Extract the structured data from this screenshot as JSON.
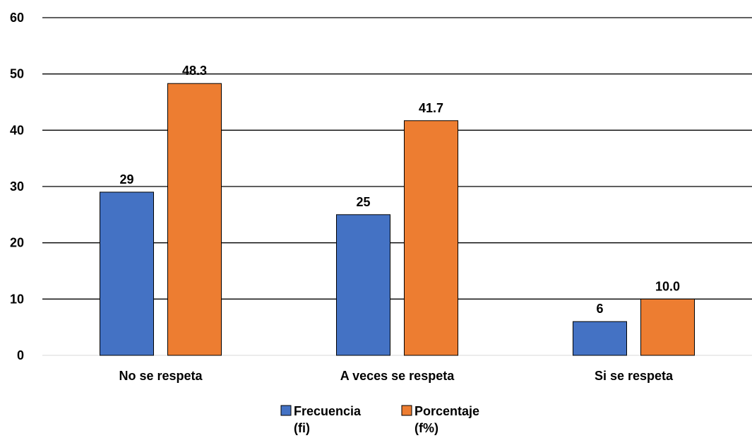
{
  "chart_data": {
    "type": "bar",
    "categories": [
      "No se respeta",
      "A veces se respeta",
      "Si se respeta"
    ],
    "series": [
      {
        "name": "Frecuencia (fi)",
        "legend_lines": [
          "Frecuencia",
          "(fi)"
        ],
        "values": [
          29,
          25,
          6
        ],
        "labels": [
          "29",
          "25",
          "6"
        ],
        "color": "#4472C4"
      },
      {
        "name": "Porcentaje (f%)",
        "legend_lines": [
          "Porcentaje",
          "(f%)"
        ],
        "values": [
          48.3,
          41.7,
          10.0
        ],
        "labels": [
          "48.3",
          "41.7",
          "10.0"
        ],
        "color": "#ED7D31"
      }
    ],
    "yticks": [
      "0",
      "10",
      "20",
      "30",
      "40",
      "50",
      "60"
    ],
    "ylim": [
      0,
      60
    ],
    "grid": true,
    "legend_position": "bottom"
  }
}
